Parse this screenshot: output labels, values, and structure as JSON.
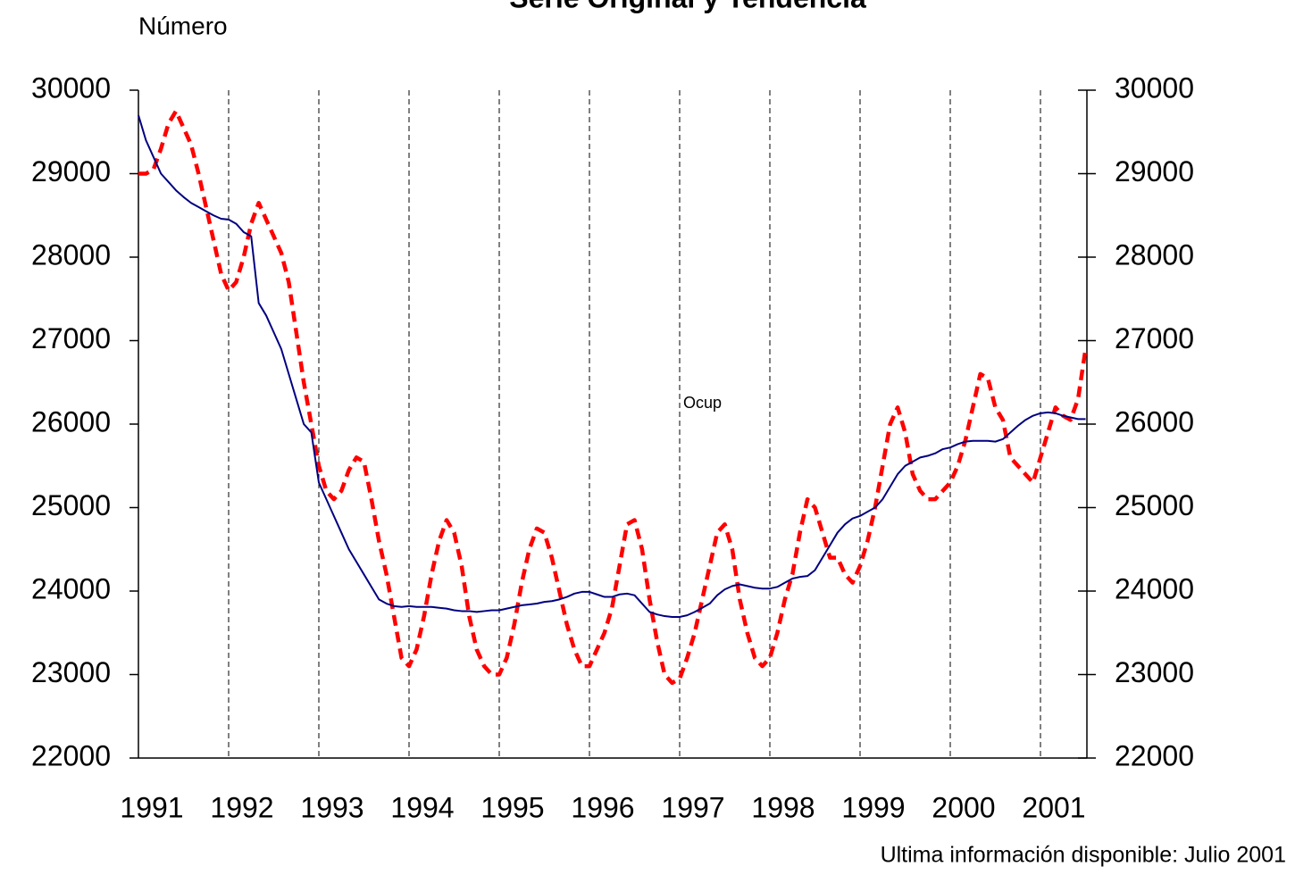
{
  "chart_data": {
    "type": "line",
    "title": "Serie Original y Tendencia",
    "y_label": "Número",
    "annotation": "Ocup",
    "footer": "Ultima información disponible: Julio 2001",
    "categories": [
      "1991",
      null,
      null,
      null,
      null,
      null,
      null,
      null,
      null,
      null,
      null,
      null,
      "1992",
      null,
      null,
      null,
      null,
      null,
      null,
      null,
      null,
      null,
      null,
      null,
      "1993",
      null,
      null,
      null,
      null,
      null,
      null,
      null,
      null,
      null,
      null,
      null,
      "1994",
      null,
      null,
      null,
      null,
      null,
      null,
      null,
      null,
      null,
      null,
      null,
      "1995",
      null,
      null,
      null,
      null,
      null,
      null,
      null,
      null,
      null,
      null,
      null,
      "1996",
      null,
      null,
      null,
      null,
      null,
      null,
      null,
      null,
      null,
      null,
      null,
      "1997",
      null,
      null,
      null,
      null,
      null,
      null,
      null,
      null,
      null,
      null,
      null,
      "1998",
      null,
      null,
      null,
      null,
      null,
      null,
      null,
      null,
      null,
      null,
      null,
      "1999",
      null,
      null,
      null,
      null,
      null,
      null,
      null,
      null,
      null,
      null,
      null,
      "2000",
      null,
      null,
      null,
      null,
      null,
      null,
      null,
      null,
      null,
      null,
      null,
      "2001",
      null,
      null,
      null,
      null,
      null,
      null
    ],
    "series": [
      {
        "color": "#ff0000",
        "line_style": "dashed",
        "values": [
          29000,
          29000,
          29050,
          29300,
          29600,
          29750,
          29550,
          29350,
          29000,
          28600,
          28200,
          27800,
          27600,
          27700,
          28000,
          28400,
          28650,
          28450,
          28250,
          28050,
          27700,
          27100,
          26500,
          26000,
          25500,
          25200,
          25100,
          25200,
          25450,
          25600,
          25550,
          25100,
          24600,
          24200,
          23700,
          23200,
          23100,
          23300,
          23700,
          24200,
          24600,
          24850,
          24700,
          24300,
          23700,
          23300,
          23100,
          23000,
          23000,
          23200,
          23600,
          24100,
          24500,
          24750,
          24700,
          24400,
          24000,
          23600,
          23300,
          23100,
          23100,
          23300,
          23500,
          23800,
          24300,
          24800,
          24850,
          24500,
          23900,
          23400,
          23000,
          22900,
          22950,
          23200,
          23500,
          23900,
          24300,
          24700,
          24800,
          24500,
          23900,
          23500,
          23200,
          23100,
          23200,
          23500,
          23900,
          24200,
          24700,
          25100,
          25000,
          24700,
          24400,
          24400,
          24200,
          24100,
          24300,
          24600,
          25000,
          25500,
          26000,
          26200,
          25900,
          25400,
          25200,
          25100,
          25100,
          25200,
          25300,
          25500,
          25800,
          26200,
          26600,
          26550,
          26200,
          26050,
          25600,
          25500,
          25400,
          25300,
          25600,
          25900,
          26200,
          26100,
          26050,
          26300,
          26900
        ]
      },
      {
        "color": "#000080",
        "line_style": "solid",
        "values": [
          29700,
          29400,
          29200,
          29000,
          28900,
          28800,
          28720,
          28650,
          28600,
          28550,
          28500,
          28460,
          28450,
          28400,
          28300,
          28250,
          27450,
          27300,
          27100,
          26900,
          26600,
          26300,
          26000,
          25900,
          25300,
          25100,
          24900,
          24700,
          24500,
          24350,
          24200,
          24050,
          23900,
          23850,
          23820,
          23810,
          23820,
          23810,
          23810,
          23810,
          23800,
          23790,
          23770,
          23760,
          23760,
          23750,
          23760,
          23770,
          23770,
          23790,
          23810,
          23830,
          23840,
          23850,
          23870,
          23880,
          23900,
          23930,
          23970,
          23990,
          23990,
          23960,
          23930,
          23930,
          23960,
          23970,
          23950,
          23850,
          23750,
          23720,
          23700,
          23690,
          23690,
          23710,
          23750,
          23800,
          23850,
          23950,
          24020,
          24060,
          24080,
          24060,
          24040,
          24030,
          24030,
          24050,
          24100,
          24150,
          24170,
          24180,
          24250,
          24400,
          24550,
          24700,
          24800,
          24870,
          24900,
          24950,
          25000,
          25100,
          25250,
          25400,
          25500,
          25550,
          25600,
          25620,
          25650,
          25700,
          25720,
          25760,
          25790,
          25800,
          25800,
          25800,
          25790,
          25820,
          25900,
          25980,
          26050,
          26100,
          26130,
          26140,
          26130,
          26100,
          26080,
          26060,
          26060
        ]
      }
    ],
    "ylim": [
      22000,
      30000
    ],
    "yticks": [
      22000,
      23000,
      24000,
      25000,
      26000,
      27000,
      28000,
      29000,
      30000
    ],
    "y2lim": [
      22000,
      30000
    ],
    "y2ticks": [
      22000,
      23000,
      24000,
      25000,
      26000,
      27000,
      28000,
      29000,
      30000
    ],
    "x_grid": true
  }
}
